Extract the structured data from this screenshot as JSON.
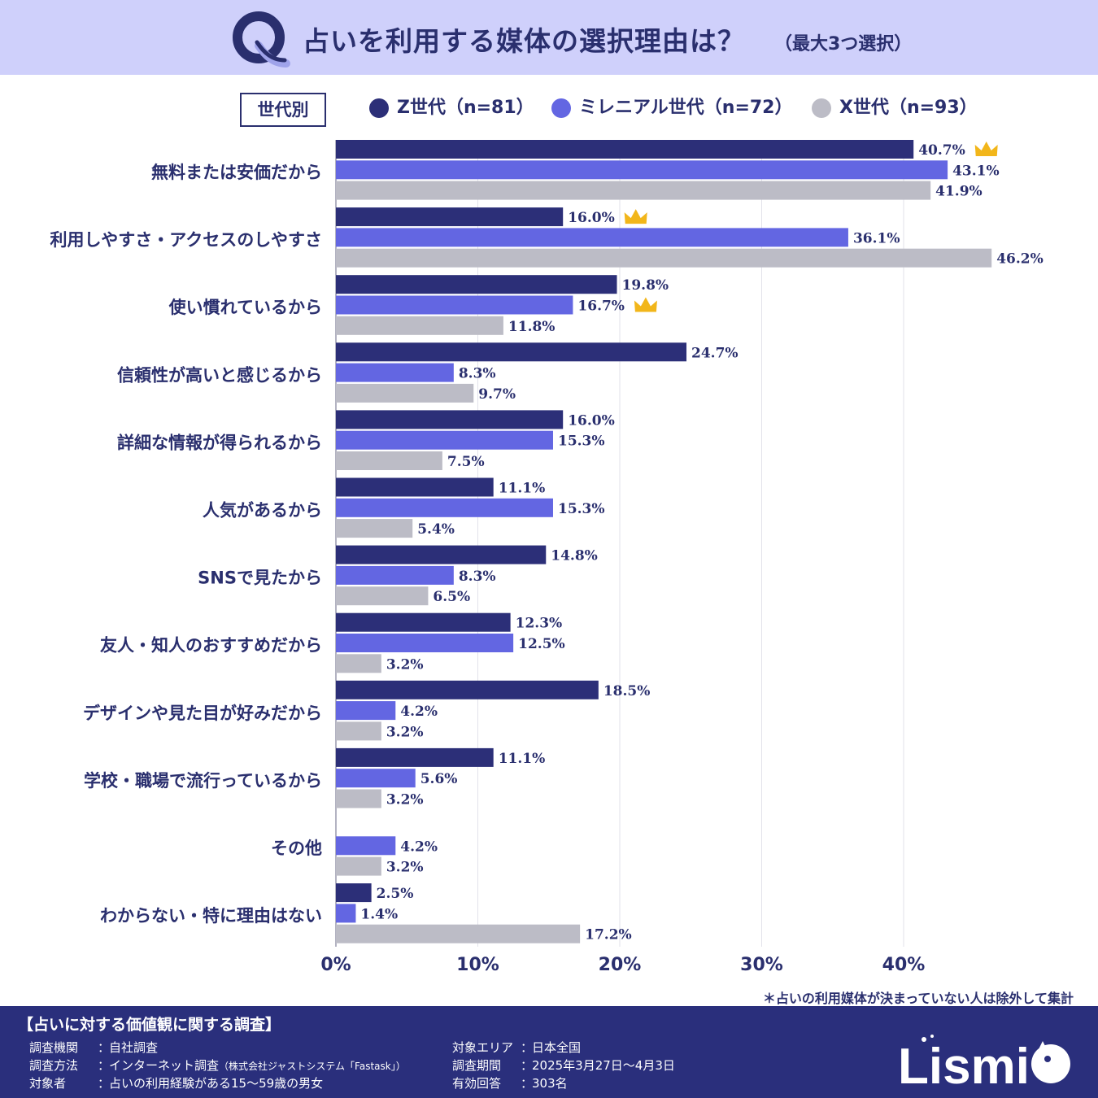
{
  "header": {
    "q_letter": "Q",
    "title": "占いを利用する媒体の選択理由は？",
    "subtitle": "（最大3つ選択）"
  },
  "legend": {
    "box_label": "世代別",
    "items": [
      {
        "label": "Z世代（n=81）",
        "color": "#2c2f78"
      },
      {
        "label": "ミレニアル世代（n=72）",
        "color": "#6366e2"
      },
      {
        "label": "X世代（n=93）",
        "color": "#bcbcc6"
      }
    ]
  },
  "chart_data": {
    "type": "bar",
    "orientation": "horizontal",
    "title": "占いを利用する媒体の選択理由は？",
    "categories": [
      "無料または安価だから",
      "利用しやすさ・アクセスのしやすさ",
      "使い慣れているから",
      "信頼性が高いと感じるから",
      "詳細な情報が得られるから",
      "人気があるから",
      "SNSで見たから",
      "友人・知人のおすすめだから",
      "デザインや見た目が好みだから",
      "学校・職場で流行っているから",
      "その他",
      "わからない・特に理由はない"
    ],
    "series": [
      {
        "name": "Z世代（n=81）",
        "color": "#2c2f78",
        "values": [
          40.7,
          16.0,
          19.8,
          24.7,
          16.0,
          11.1,
          14.8,
          12.3,
          18.5,
          11.1,
          null,
          2.5
        ]
      },
      {
        "name": "ミレニアル世代（n=72）",
        "color": "#6366e2",
        "values": [
          43.1,
          36.1,
          16.7,
          8.3,
          15.3,
          15.3,
          8.3,
          12.5,
          4.2,
          5.6,
          4.2,
          1.4
        ]
      },
      {
        "name": "X世代（n=93）",
        "color": "#bcbcc6",
        "values": [
          41.9,
          46.2,
          11.8,
          9.7,
          7.5,
          5.4,
          6.5,
          3.2,
          3.2,
          3.2,
          3.2,
          17.2
        ]
      }
    ],
    "value_labels": [
      [
        "40.7%",
        "16.0%",
        "19.8%",
        "24.7%",
        "16.0%",
        "11.1%",
        "14.8%",
        "12.3%",
        "18.5%",
        "11.1%",
        null,
        "2.5%"
      ],
      [
        "43.1%",
        "36.1%",
        "16.7%",
        "8.3%",
        "15.3%",
        "15.3%",
        "8.3%",
        "12.5%",
        "4.2%",
        "5.6%",
        "4.2%",
        "1.4%"
      ],
      [
        "41.9%",
        "46.2%",
        "11.8%",
        "9.7%",
        "7.5%",
        "5.4%",
        "6.5%",
        "3.2%",
        "3.2%",
        "3.2%",
        "3.2%",
        "17.2%"
      ]
    ],
    "crowned": [
      [
        0,
        0
      ],
      [
        1,
        0
      ],
      [
        2,
        1
      ]
    ],
    "xlim": [
      0,
      50
    ],
    "xticks": [
      0,
      10,
      20,
      30,
      40
    ],
    "xtick_labels": [
      "0%",
      "10%",
      "20%",
      "30%",
      "40%"
    ],
    "grid": true,
    "legend_position": "top"
  },
  "note": "＊占いの利用媒体が決まっていない人は除外して集計",
  "footer": {
    "title": "【占いに対する価値観に関する調査】",
    "left": [
      {
        "key": "調査機関",
        "value": "自社調査",
        "sub": ""
      },
      {
        "key": "調査方法",
        "value": "インターネット調査",
        "sub": "（株式会社ジャストシステム「Fastask」）"
      },
      {
        "key": "対象者",
        "value": "占いの利用経験がある15～59歳の男女",
        "sub": ""
      }
    ],
    "right": [
      {
        "key": "対象エリア",
        "value": "日本全国"
      },
      {
        "key": "調査期間",
        "value": "2025年3月27日～4月3日"
      },
      {
        "key": "有効回答",
        "value": "303名"
      }
    ],
    "separator": "：",
    "brand": "Lismi"
  },
  "colors": {
    "header_bg": "#cfd0fb",
    "text_navy": "#2a2f6e",
    "footer_bg": "#2a2f7c",
    "crown": "#f2b61a"
  }
}
